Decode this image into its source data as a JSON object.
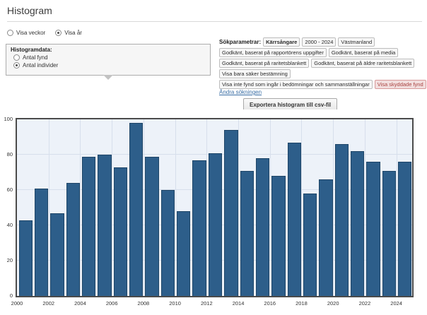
{
  "page": {
    "title": "Histogram"
  },
  "view_toggle": {
    "options": [
      {
        "label": "Visa veckor",
        "selected": false
      },
      {
        "label": "Visa år",
        "selected": true
      }
    ]
  },
  "histogram_box": {
    "title": "Histogramdata:",
    "options": [
      {
        "label": "Antal fynd",
        "selected": false
      },
      {
        "label": "Antal individer",
        "selected": true
      }
    ]
  },
  "search_params": {
    "label": "Sökparametrar:",
    "tags": [
      {
        "label": "Kärrsångare",
        "bold": true
      },
      {
        "label": "2000 - 2024"
      },
      {
        "label": "Västmanland"
      },
      {
        "label": "Godkänt, baserat på rapportörens uppgifter"
      },
      {
        "label": "Godkänt, baserat på media"
      },
      {
        "label": "Godkänt, baserat på raritetsblankett"
      },
      {
        "label": "Godkänt, baserat på äldre raritetsblankett"
      },
      {
        "label": "Visa bara säker bestämning"
      },
      {
        "label": "Visa inte fynd som ingår i bedömningar och sammanställningar"
      },
      {
        "label": "Visa skyddade fynd",
        "alert": true
      }
    ],
    "edit_link": "Ändra sökningen"
  },
  "export_button": {
    "label": "Exportera histogram till csv-fil"
  },
  "colors": {
    "bar": "#2d5e8a",
    "bar_border": "#1e4567",
    "plot_background": "#edf2f9",
    "gridline": "#d7dfec",
    "axis_border": "#4b4b4b",
    "alert_tag_background": "#f2dede",
    "alert_tag_text": "#a94442",
    "link": "#3a6ea5"
  },
  "chart_data": {
    "type": "bar",
    "title": "",
    "xlabel": "",
    "ylabel": "",
    "ylim": [
      0,
      100
    ],
    "grid": true,
    "legend": "none",
    "categories": [
      2000,
      2001,
      2002,
      2003,
      2004,
      2005,
      2006,
      2007,
      2008,
      2009,
      2010,
      2011,
      2012,
      2013,
      2014,
      2015,
      2016,
      2017,
      2018,
      2019,
      2020,
      2021,
      2022,
      2023,
      2024
    ],
    "values": [
      43,
      61,
      47,
      64,
      79,
      80,
      73,
      98,
      79,
      60,
      48,
      77,
      81,
      94,
      71,
      78,
      68,
      87,
      58,
      66,
      86,
      82,
      76,
      71,
      76
    ],
    "y_ticks": [
      0,
      20,
      40,
      60,
      80,
      100
    ],
    "x_tick_years": [
      2000,
      2002,
      2004,
      2006,
      2008,
      2010,
      2012,
      2014,
      2016,
      2018,
      2020,
      2022,
      2024
    ]
  }
}
